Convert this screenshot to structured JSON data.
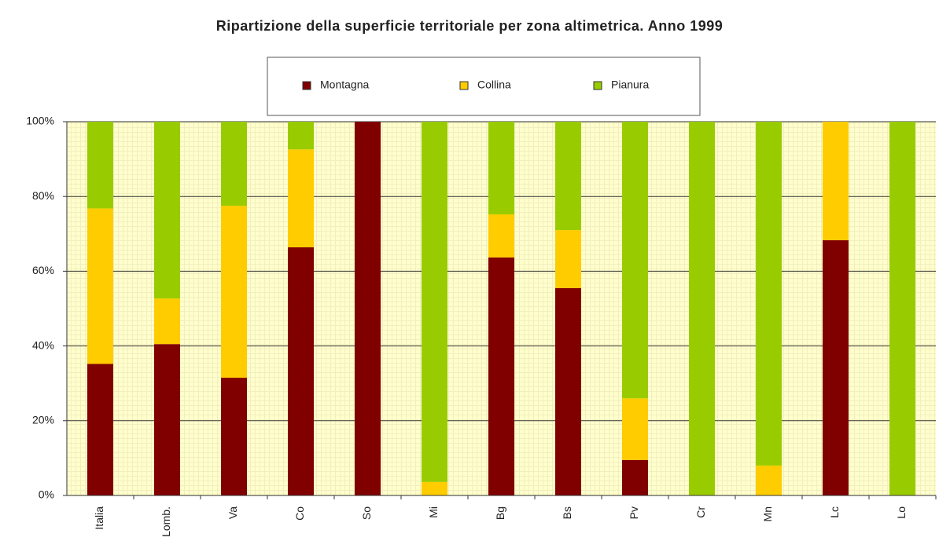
{
  "chart_data": {
    "type": "stacked_bar",
    "title": "Ripartizione della superficie territoriale per zona altimetrica. Anno 1999",
    "categories": [
      "Italia",
      "Lomb.",
      "Va",
      "Co",
      "So",
      "Mi",
      "Bg",
      "Bs",
      "Pv",
      "Cr",
      "Mn",
      "Lc",
      "Lo"
    ],
    "series": [
      {
        "name": "Montagna",
        "color": "#800000",
        "values": [
          35.2,
          40.5,
          31.5,
          66.4,
          100,
          0,
          63.7,
          55.5,
          9.5,
          0,
          0,
          68.3,
          0
        ]
      },
      {
        "name": "Collina",
        "color": "#ffcc00",
        "values": [
          41.6,
          12.2,
          46.0,
          26.2,
          0,
          3.6,
          11.5,
          15.5,
          16.5,
          0,
          8.0,
          31.7,
          0
        ]
      },
      {
        "name": "Pianura",
        "color": "#99cc00",
        "values": [
          23.2,
          47.3,
          22.5,
          7.4,
          0,
          96.4,
          24.8,
          29.0,
          74.0,
          100,
          92.0,
          0,
          100
        ]
      }
    ],
    "ylim": [
      0,
      100
    ],
    "yticks": [
      {
        "value": 0,
        "label": "0%"
      },
      {
        "value": 20,
        "label": "20%"
      },
      {
        "value": 40,
        "label": "40%"
      },
      {
        "value": 60,
        "label": "60%"
      },
      {
        "value": 80,
        "label": "80%"
      },
      {
        "value": 100,
        "label": "100%"
      }
    ],
    "grid": true,
    "legend": "top"
  }
}
